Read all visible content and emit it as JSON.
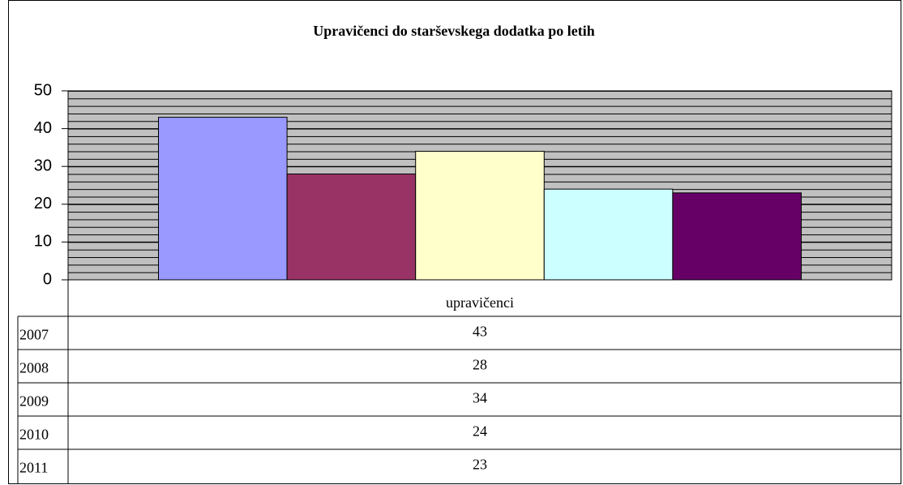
{
  "chart_data": {
    "type": "bar",
    "title": "Upravičenci do starševskega dodatka po letih",
    "categories": [
      "upravičenci"
    ],
    "series": [
      {
        "name": "2007",
        "color": "#9999ff",
        "values": [
          43
        ]
      },
      {
        "name": "2008",
        "color": "#993366",
        "values": [
          28
        ]
      },
      {
        "name": "2009",
        "color": "#ffffcc",
        "values": [
          34
        ]
      },
      {
        "name": "2010",
        "color": "#ccffff",
        "values": [
          24
        ]
      },
      {
        "name": "2011",
        "color": "#660066",
        "values": [
          23
        ]
      }
    ],
    "ylim": [
      0,
      50
    ],
    "yticks": [
      0,
      10,
      20,
      30,
      40,
      50
    ],
    "grid": true
  }
}
